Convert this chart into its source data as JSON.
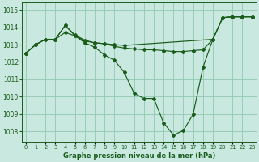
{
  "xlabel": "Graphe pression niveau de la mer (hPa)",
  "bg_color": "#c8e8e0",
  "grid_color": "#90c8b0",
  "line_color": "#1a5c1a",
  "ylim": [
    1007.4,
    1015.4
  ],
  "xlim": [
    -0.4,
    23.4
  ],
  "yticks": [
    1008,
    1009,
    1010,
    1011,
    1012,
    1013,
    1014,
    1015
  ],
  "xtick_labels": [
    "0",
    "1",
    "2",
    "3",
    "4",
    "5",
    "6",
    "7",
    "8",
    "9",
    "10",
    "11",
    "12",
    "13",
    "14",
    "15",
    "16",
    "17",
    "18",
    "19",
    "20",
    "21",
    "22",
    "23"
  ],
  "s1_x": [
    0,
    1,
    2,
    3,
    4,
    5,
    6,
    7,
    8,
    9,
    10,
    11,
    12,
    13,
    14,
    15,
    16,
    17,
    18,
    19,
    20,
    21,
    22,
    23
  ],
  "s1_y": [
    1012.5,
    1013.0,
    1013.3,
    1013.3,
    1013.7,
    1013.5,
    1013.2,
    1013.1,
    1013.05,
    1012.9,
    1012.8,
    1012.75,
    1012.7,
    1012.7,
    1012.65,
    1012.6,
    1012.6,
    1012.65,
    1012.7,
    1013.3,
    1014.55,
    1014.6,
    1014.6,
    1014.6
  ],
  "s2_x": [
    0,
    1,
    2,
    3,
    4,
    5,
    6,
    7,
    8,
    9,
    10,
    19,
    20,
    21,
    22,
    23
  ],
  "s2_y": [
    1012.5,
    1013.0,
    1013.3,
    1013.3,
    1014.1,
    1013.55,
    1013.25,
    1013.1,
    1013.05,
    1013.0,
    1012.95,
    1013.3,
    1014.55,
    1014.6,
    1014.6,
    1014.6
  ],
  "s3_x": [
    0,
    1,
    2,
    3,
    4,
    5,
    6,
    7,
    8,
    9,
    10,
    11,
    12,
    13,
    14,
    15,
    16,
    17,
    18,
    19,
    20,
    21,
    22,
    23
  ],
  "s3_y": [
    1012.5,
    1013.0,
    1013.3,
    1013.3,
    1014.1,
    1013.5,
    1013.1,
    1012.85,
    1012.4,
    1012.1,
    1011.4,
    1010.2,
    1009.9,
    1009.9,
    1008.5,
    1007.8,
    1008.05,
    1009.0,
    1011.7,
    1013.3,
    1014.55,
    1014.6,
    1014.6,
    1014.6
  ]
}
